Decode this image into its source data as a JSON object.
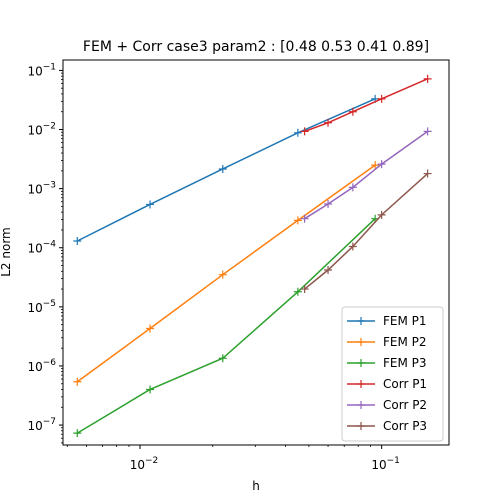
{
  "chart_data": {
    "type": "line",
    "title": "FEM + Corr case3 param2 : [0.48 0.53 0.41 0.89]",
    "xlabel": "h",
    "ylabel": "L2 norm",
    "xscale": "log",
    "yscale": "log",
    "xlim": [
      0.0048,
      0.19
    ],
    "ylim": [
      4.6e-08,
      0.15
    ],
    "x_ticks": [
      {
        "value": 0.01,
        "base": "10",
        "exp": "−2"
      },
      {
        "value": 0.1,
        "base": "10",
        "exp": "−1"
      }
    ],
    "y_ticks": [
      {
        "value": 1e-07,
        "base": "10",
        "exp": "−7"
      },
      {
        "value": 1e-06,
        "base": "10",
        "exp": "−6"
      },
      {
        "value": 1e-05,
        "base": "10",
        "exp": "−5"
      },
      {
        "value": 0.0001,
        "base": "10",
        "exp": "−4"
      },
      {
        "value": 0.001,
        "base": "10",
        "exp": "−3"
      },
      {
        "value": 0.01,
        "base": "10",
        "exp": "−2"
      },
      {
        "value": 0.1,
        "base": "10",
        "exp": "−1"
      }
    ],
    "grid": false,
    "legend_position": "lower-right",
    "series": [
      {
        "name": "FEM P1",
        "color": "#1f77b4",
        "x": [
          0.0055,
          0.011,
          0.022,
          0.045,
          0.094
        ],
        "y": [
          0.00013,
          0.00054,
          0.00215,
          0.0088,
          0.033
        ]
      },
      {
        "name": "FEM P2",
        "color": "#ff7f0e",
        "x": [
          0.0055,
          0.011,
          0.022,
          0.045,
          0.094
        ],
        "y": [
          5.4e-07,
          4.3e-06,
          3.5e-05,
          0.00029,
          0.0025
        ]
      },
      {
        "name": "FEM P3",
        "color": "#2ca02c",
        "x": [
          0.0055,
          0.011,
          0.022,
          0.045,
          0.094
        ],
        "y": [
          7.3e-08,
          4e-07,
          1.35e-06,
          1.8e-05,
          0.00031
        ]
      },
      {
        "name": "Corr P1",
        "color": "#d62728",
        "x": [
          0.048,
          0.06,
          0.076,
          0.1,
          0.155
        ],
        "y": [
          0.0093,
          0.013,
          0.02,
          0.033,
          0.072
        ]
      },
      {
        "name": "Corr P2",
        "color": "#9467bd",
        "x": [
          0.048,
          0.06,
          0.076,
          0.1,
          0.155
        ],
        "y": [
          0.00031,
          0.00055,
          0.00105,
          0.0026,
          0.0093
        ]
      },
      {
        "name": "Corr P3",
        "color": "#8c564b",
        "x": [
          0.048,
          0.06,
          0.076,
          0.1,
          0.155
        ],
        "y": [
          2e-05,
          4.2e-05,
          0.000105,
          0.00036,
          0.0018
        ]
      }
    ]
  }
}
